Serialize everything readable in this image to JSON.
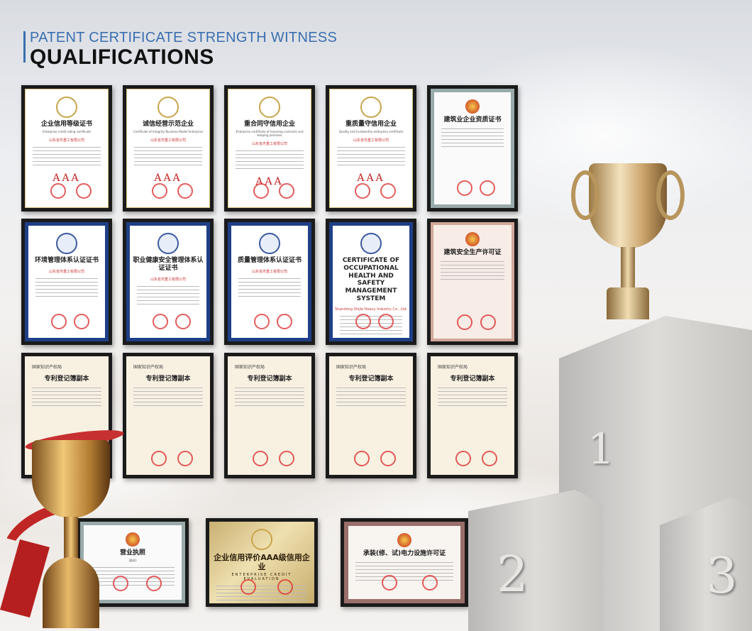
{
  "header": {
    "subtitle": "PATENT CERTIFICATE STRENGTH WITNESS",
    "title": "QUALIFICATIONS"
  },
  "rows": [
    [
      {
        "style": "white",
        "title": "企业信用等级证书",
        "sub": "Enterprise credit rating certificate",
        "company": "山东省杰重工有限公司",
        "grade": "AAA"
      },
      {
        "style": "white",
        "title": "诚信经营示范企业",
        "sub": "Certificate of Integrity Business Model Enterprise",
        "company": "山东省杰重工有限公司",
        "grade": "AAA"
      },
      {
        "style": "white",
        "title": "重合同守信用企业",
        "sub": "Enterprise certificate of honoring contracts and keeping promises",
        "company": "山东省杰重工有限公司",
        "grade": "AAA"
      },
      {
        "style": "white",
        "title": "重质量守信用企业",
        "sub": "Quality and trustworthy enterprise certificate",
        "company": "山东省杰重工有限公司",
        "grade": "AAA"
      },
      {
        "style": "grey",
        "title": "建筑业企业资质证书",
        "sub": "",
        "company": "",
        "grade": ""
      }
    ],
    [
      {
        "style": "blue",
        "title": "环境管理体系认证证书",
        "sub": "",
        "company": "山东省杰重工有限公司",
        "grade": ""
      },
      {
        "style": "blue",
        "title": "职业健康安全管理体系认证证书",
        "sub": "",
        "company": "山东省杰重工有限公司",
        "grade": ""
      },
      {
        "style": "blue",
        "title": "质量管理体系认证证书",
        "sub": "",
        "company": "山东省杰重工有限公司",
        "grade": ""
      },
      {
        "style": "blue",
        "title": "CERTIFICATE OF OCCUPATIONAL HEALTH AND SAFETY MANAGEMENT SYSTEM",
        "sub": "",
        "company": "Shandong Shijie Heavy Industry Co., Ltd.",
        "grade": ""
      },
      {
        "style": "pink",
        "title": "建筑安全生产许可证",
        "sub": "",
        "company": "",
        "grade": ""
      }
    ],
    [
      {
        "style": "cream",
        "title": "专利登记簿副本",
        "sub": "国家知识产权局",
        "company": "",
        "grade": ""
      },
      {
        "style": "cream",
        "title": "专利登记簿副本",
        "sub": "国家知识产权局",
        "company": "",
        "grade": ""
      },
      {
        "style": "cream",
        "title": "专利登记簿副本",
        "sub": "国家知识产权局",
        "company": "",
        "grade": ""
      },
      {
        "style": "cream",
        "title": "专利登记簿副本",
        "sub": "国家知识产权局",
        "company": "",
        "grade": ""
      },
      {
        "style": "cream",
        "title": "专利登记簿副本",
        "sub": "国家知识产权局",
        "company": "",
        "grade": ""
      }
    ]
  ],
  "bottom": [
    {
      "style": "grey",
      "title": "营业执照",
      "sub": "(副本)",
      "company": "",
      "grade": ""
    },
    {
      "style": "gold",
      "title": "企业信用评价AAA级信用企业",
      "sub": "ENTERPRISE CREDIT EVALUATION",
      "company": "",
      "grade": ""
    },
    {
      "style": "rose",
      "title": "承装(修、试)电力设施许可证",
      "sub": "",
      "company": "",
      "grade": ""
    }
  ],
  "podium": {
    "first": "1",
    "second": "2",
    "third": "3"
  },
  "colors": {
    "accent": "#3a6fb0",
    "frame": "#1b1b1b",
    "seal": "#cc2222"
  }
}
